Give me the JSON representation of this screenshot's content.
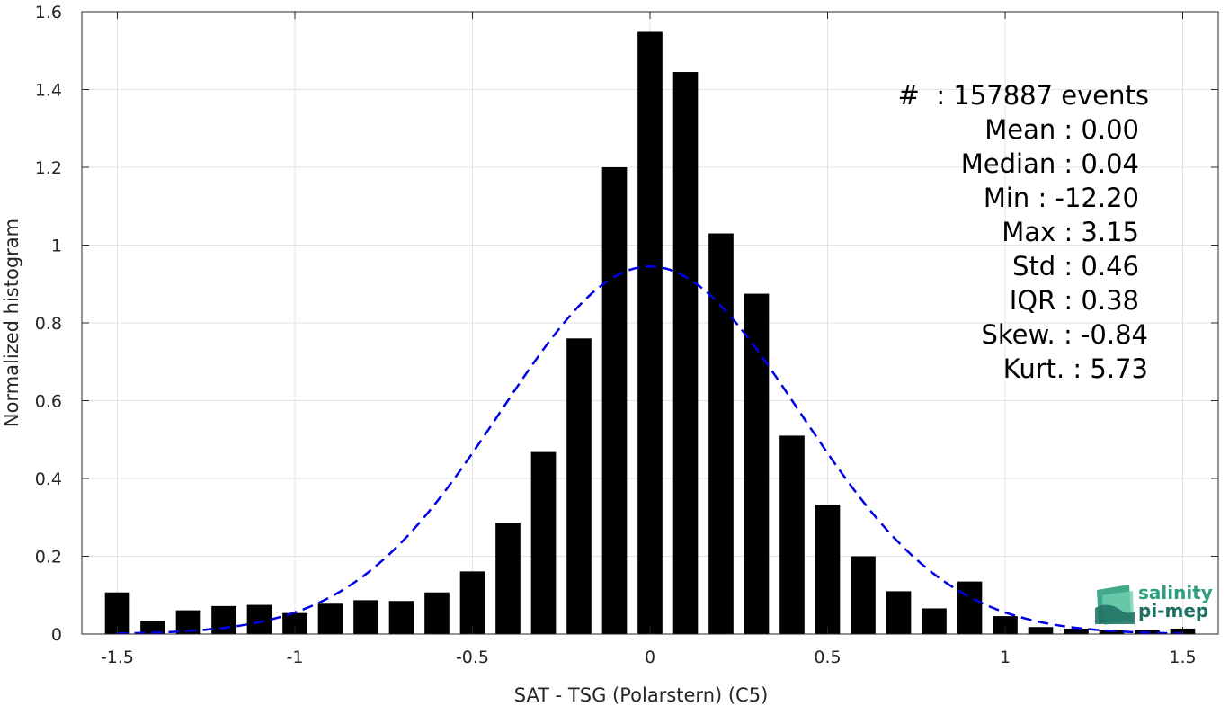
{
  "chart_data": {
    "type": "bar",
    "xlabel": "SAT - TSG (Polarstern) (C5)",
    "ylabel": "Normalized histogram",
    "xlim": [
      -1.6,
      1.6
    ],
    "ylim": [
      0,
      1.6
    ],
    "xticks": [
      "-1.5",
      "-1",
      "-0.5",
      "0",
      "0.5",
      "1",
      "1.5"
    ],
    "xtick_values": [
      -1.5,
      -1,
      -0.5,
      0,
      0.5,
      1,
      1.5
    ],
    "yticks": [
      "0",
      "0.2",
      "0.4",
      "0.6",
      "0.8",
      "1",
      "1.2",
      "1.4",
      "1.6"
    ],
    "ytick_values": [
      0,
      0.2,
      0.4,
      0.6,
      0.8,
      1,
      1.2,
      1.4,
      1.6
    ],
    "grid": true,
    "bar_width": 0.07,
    "bars": {
      "x": [
        -1.5,
        -1.4,
        -1.3,
        -1.2,
        -1.1,
        -1.0,
        -0.9,
        -0.8,
        -0.7,
        -0.6,
        -0.5,
        -0.4,
        -0.3,
        -0.2,
        -0.1,
        0.0,
        0.1,
        0.2,
        0.3,
        0.4,
        0.5,
        0.6,
        0.7,
        0.8,
        0.9,
        1.0,
        1.1,
        1.2,
        1.3,
        1.4,
        1.5
      ],
      "values": [
        0.107,
        0.034,
        0.061,
        0.072,
        0.075,
        0.054,
        0.078,
        0.087,
        0.085,
        0.107,
        0.161,
        0.286,
        0.468,
        0.76,
        1.2,
        1.548,
        1.445,
        1.03,
        0.875,
        0.51,
        0.333,
        0.2,
        0.11,
        0.066,
        0.135,
        0.046,
        0.018,
        0.014,
        0.01,
        0.01,
        0.014
      ],
      "color": "#000000"
    },
    "fit_curve": {
      "style": "dashed",
      "color": "#0000e6",
      "mean": 0.0,
      "std": 0.42,
      "peak": 0.945,
      "xrange": [
        -1.5,
        1.5
      ]
    },
    "annotations": [
      "#  : 157887 events",
      "Mean : 0.00",
      "Median : 0.04",
      "Min : -12.20",
      "Max : 3.15",
      "Std : 0.46",
      "IQR : 0.38",
      "Skew. : -0.84",
      "Kurt. : 5.73"
    ]
  },
  "logo": {
    "line1": "salinity",
    "line2": "pi-mep",
    "colors": [
      "#2e9e7e",
      "#1d6f62",
      "#6fcfb0"
    ]
  }
}
